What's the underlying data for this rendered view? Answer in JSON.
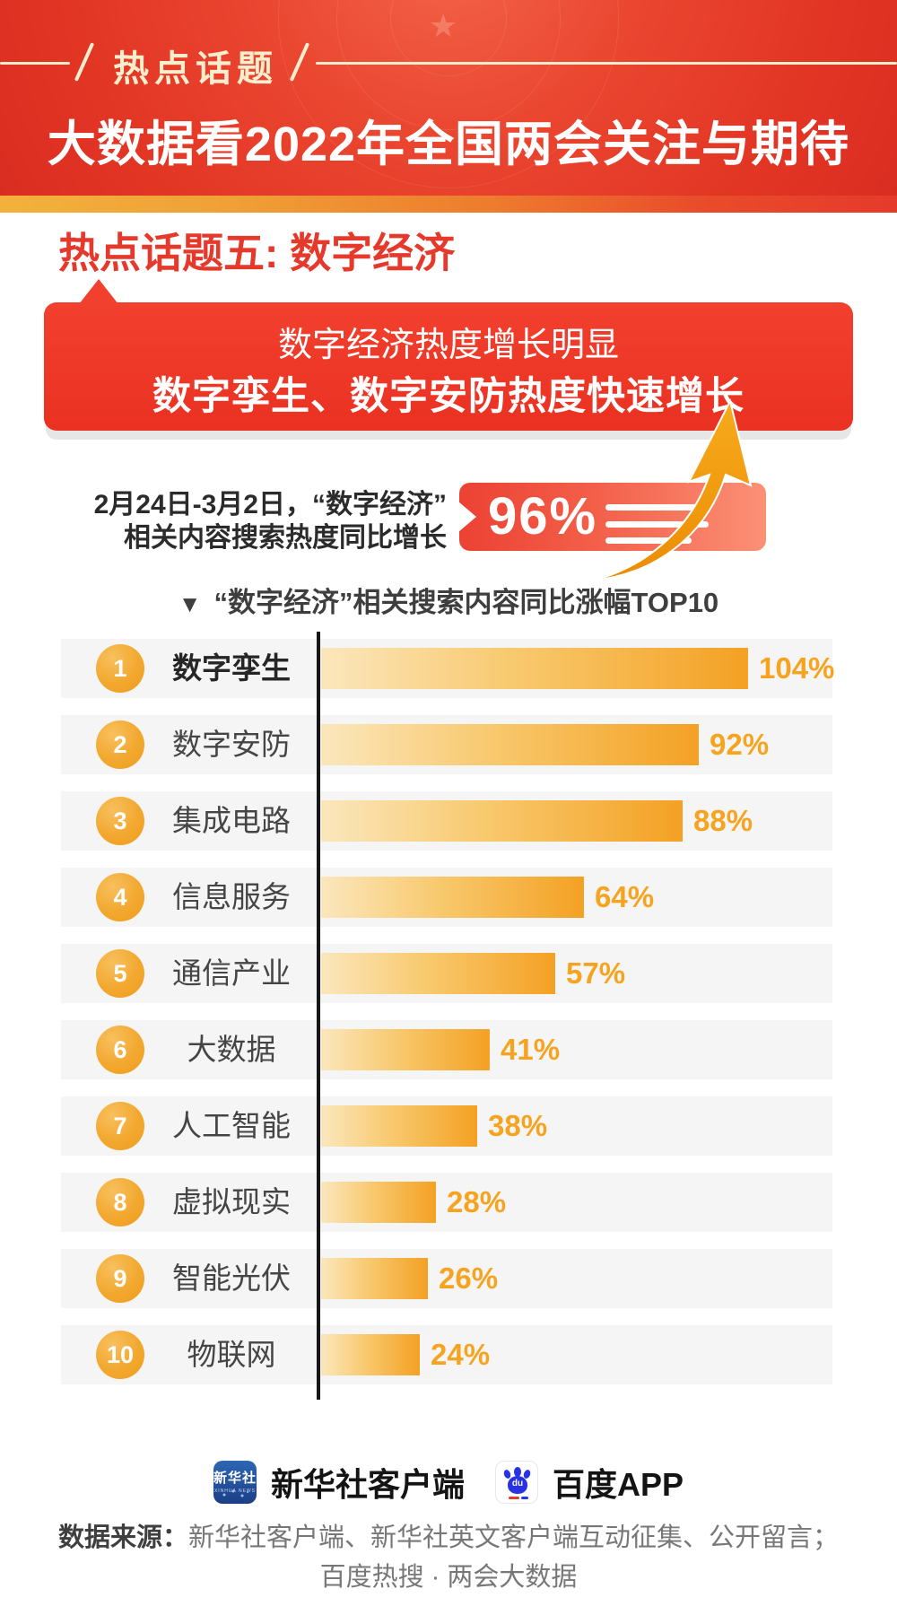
{
  "header": {
    "badge": "热点话题",
    "title": "大数据看2022年全国两会关注与期待"
  },
  "section": {
    "heading": "热点话题五: 数字经济",
    "banner_line1": "数字经济热度增长明显",
    "banner_line2": "数字孪生、数字安防热度快速增长"
  },
  "stat": {
    "desc_line1": "2月24日-3月2日，“数字经济”",
    "desc_line2": "相关内容搜索热度同比增长",
    "value": "96%"
  },
  "chart_title": {
    "marker": "▼",
    "text": "“数字经济”相关搜索内容同比涨幅TOP10"
  },
  "chart_data": {
    "type": "bar",
    "orientation": "horizontal",
    "title": "“数字经济”相关搜索内容同比涨幅TOP10",
    "unit": "%",
    "categories": [
      "数字孪生",
      "数字安防",
      "集成电路",
      "信息服务",
      "通信产业",
      "大数据",
      "人工智能",
      "虚拟现实",
      "智能光伏",
      "物联网"
    ],
    "values": [
      104,
      92,
      88,
      64,
      57,
      41,
      38,
      28,
      26,
      24
    ],
    "labels": [
      "104%",
      "92%",
      "88%",
      "64%",
      "57%",
      "41%",
      "38%",
      "28%",
      "26%",
      "24%"
    ],
    "ranks": [
      1,
      2,
      3,
      4,
      5,
      6,
      7,
      8,
      9,
      10
    ],
    "xlim": [
      0,
      110
    ],
    "bar_color_start": "#fbe7bd",
    "bar_color_end": "#f4a124",
    "value_color": "#f6a41f",
    "axis_color": "#161616",
    "highlight_stat": "96%"
  },
  "colors": {
    "header_red": "#e63a2a",
    "badge_cream": "#f8eecd",
    "section_red": "#e5392c",
    "banner_red": "#ee3a26",
    "stat_badge_start": "#ec4233",
    "stat_badge_end": "#fb9176",
    "arrow_gold": "#f2a014"
  },
  "footer": {
    "xinhua_icon_cn": "新华社",
    "xinhua_icon_en": "XINHUA NEWS",
    "logo1_label": "新华社客户端",
    "baidu_icon_du": "du",
    "logo2_label": "百度APP",
    "source_label": "数据来源：",
    "source_line1_rest": "新华社客户端、新华社英文客户端互动征集、公开留言；",
    "source_line2": "百度热搜 · 两会大数据"
  }
}
